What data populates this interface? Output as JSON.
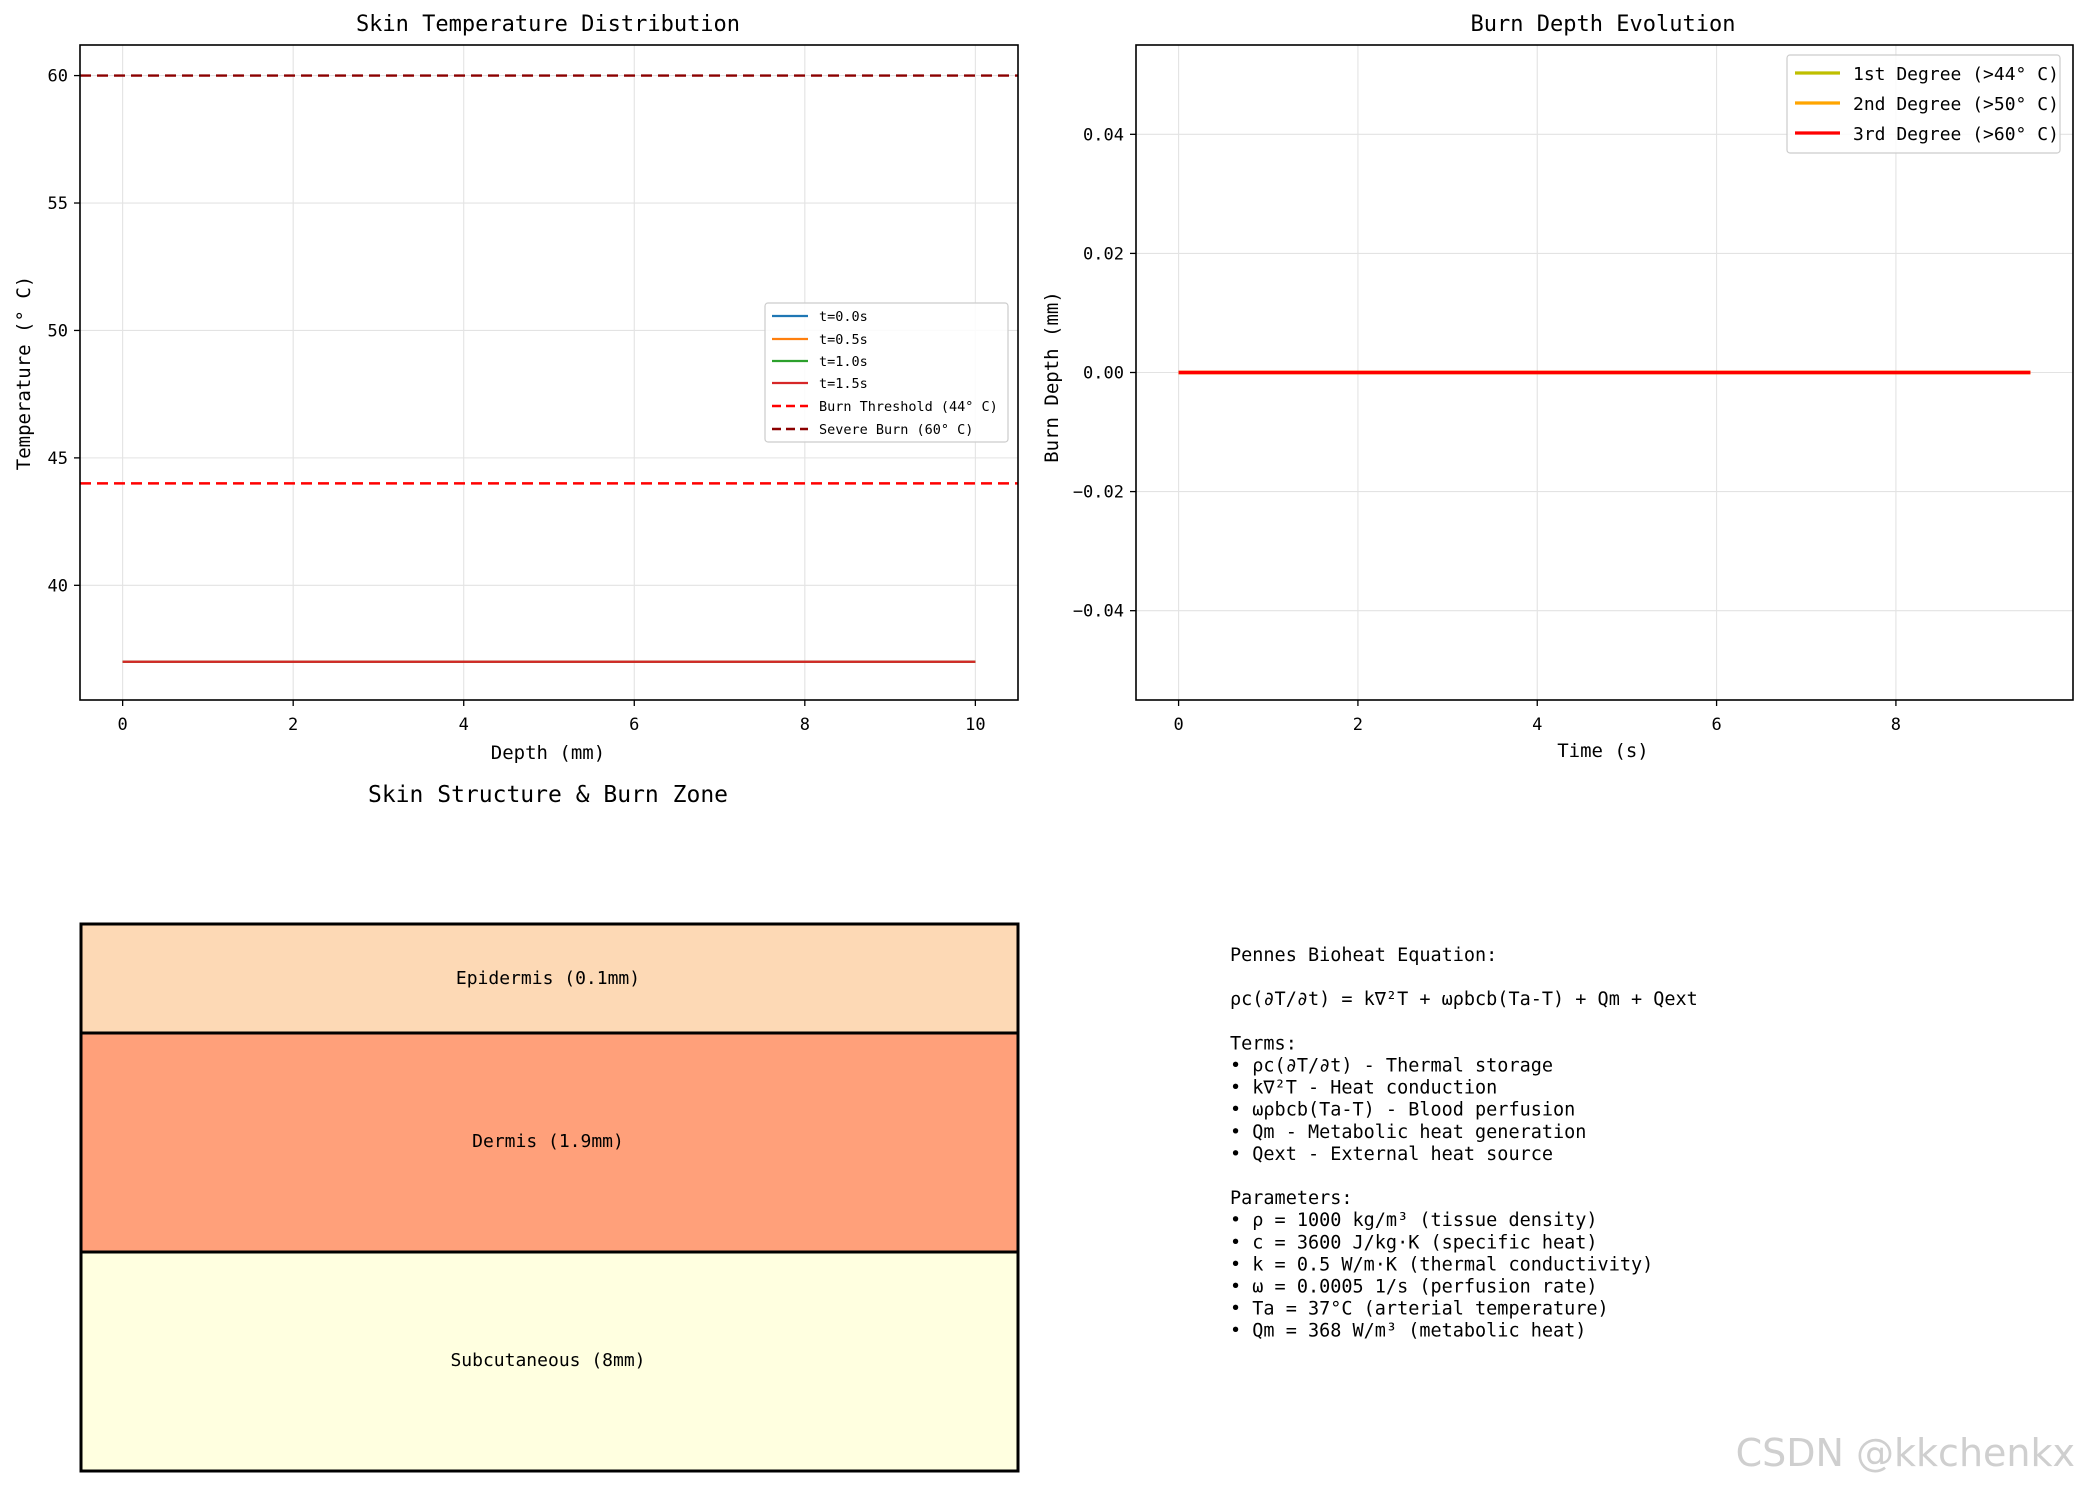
{
  "chart_data": [
    {
      "type": "line",
      "title": "Skin Temperature Distribution",
      "xlabel": "Depth (mm)",
      "ylabel": "Temperature (° C)",
      "xlim": [
        -0.5,
        10.5
      ],
      "ylim": [
        35.5,
        61.2
      ],
      "xticks": [
        0,
        2,
        4,
        6,
        8,
        10
      ],
      "yticks": [
        40,
        45,
        50,
        55,
        60
      ],
      "grid": true,
      "legend_position": "center-right",
      "series": [
        {
          "name": "t=0.0s",
          "color": "#1f77b4",
          "x": [
            0,
            10
          ],
          "y": [
            37,
            37
          ]
        },
        {
          "name": "t=0.5s",
          "color": "#ff7f0e",
          "x": [
            0,
            10
          ],
          "y": [
            37,
            37
          ]
        },
        {
          "name": "t=1.0s",
          "color": "#2ca02c",
          "x": [
            0,
            10
          ],
          "y": [
            37,
            37
          ]
        },
        {
          "name": "t=1.5s",
          "color": "#d62728",
          "x": [
            0,
            10
          ],
          "y": [
            37,
            37
          ]
        }
      ],
      "hlines": [
        {
          "name": "Burn Threshold (44° C)",
          "y": 44,
          "color": "#ff0000",
          "style": "dashed"
        },
        {
          "name": "Severe Burn (60° C)",
          "y": 60,
          "color": "#8b0000",
          "style": "dashed"
        }
      ]
    },
    {
      "type": "line",
      "title": "Burn Depth Evolution",
      "xlabel": "Time (s)",
      "ylabel": "Burn Depth (mm)",
      "xlim": [
        -0.475,
        9.975
      ],
      "ylim": [
        -0.055,
        0.055
      ],
      "xticks": [
        0,
        2,
        4,
        6,
        8
      ],
      "yticks": [
        -0.04,
        -0.02,
        0.0,
        0.02,
        0.04
      ],
      "ytick_labels": [
        "−0.04",
        "−0.02",
        "0.00",
        "0.02",
        "0.04"
      ],
      "grid": true,
      "legend_position": "top-right",
      "series": [
        {
          "name": "1st Degree (>44° C)",
          "color": "#bfbf00",
          "x": [
            0,
            9.5
          ],
          "y": [
            0,
            0
          ]
        },
        {
          "name": "2nd Degree (>50° C)",
          "color": "#ffa500",
          "x": [
            0,
            9.5
          ],
          "y": [
            0,
            0
          ]
        },
        {
          "name": "3rd Degree (>60° C)",
          "color": "#ff0000",
          "x": [
            0,
            9.5
          ],
          "y": [
            0,
            0
          ]
        }
      ]
    }
  ],
  "skin_structure": {
    "title": "Skin Structure & Burn Zone",
    "layers": [
      {
        "label": "Epidermis (0.1mm)",
        "color": "#fdd9b5"
      },
      {
        "label": "Dermis (1.9mm)",
        "color": "#ffa07a"
      },
      {
        "label": "Subcutaneous (8mm)",
        "color": "#ffffe0"
      }
    ]
  },
  "equation_panel": {
    "lines": [
      "Pennes Bioheat Equation:",
      "",
      "ρc(∂T/∂t) = k∇²T + ωρbcb(Ta-T) + Qm + Qext",
      "",
      "Terms:",
      "• ρc(∂T/∂t) - Thermal storage",
      "• k∇²T - Heat conduction",
      "• ωρbcb(Ta-T) - Blood perfusion",
      "• Qm - Metabolic heat generation",
      "• Qext - External heat source",
      "",
      "Parameters:",
      "• ρ = 1000 kg/m³ (tissue density)",
      "• c = 3600 J/kg·K (specific heat)",
      "• k = 0.5 W/m·K (thermal conductivity)",
      "• ω = 0.0005 1/s (perfusion rate)",
      "• Ta = 37°C (arterial temperature)",
      "• Qm = 368 W/m³ (metabolic heat)"
    ]
  },
  "watermark": "CSDN @kkchenkx"
}
